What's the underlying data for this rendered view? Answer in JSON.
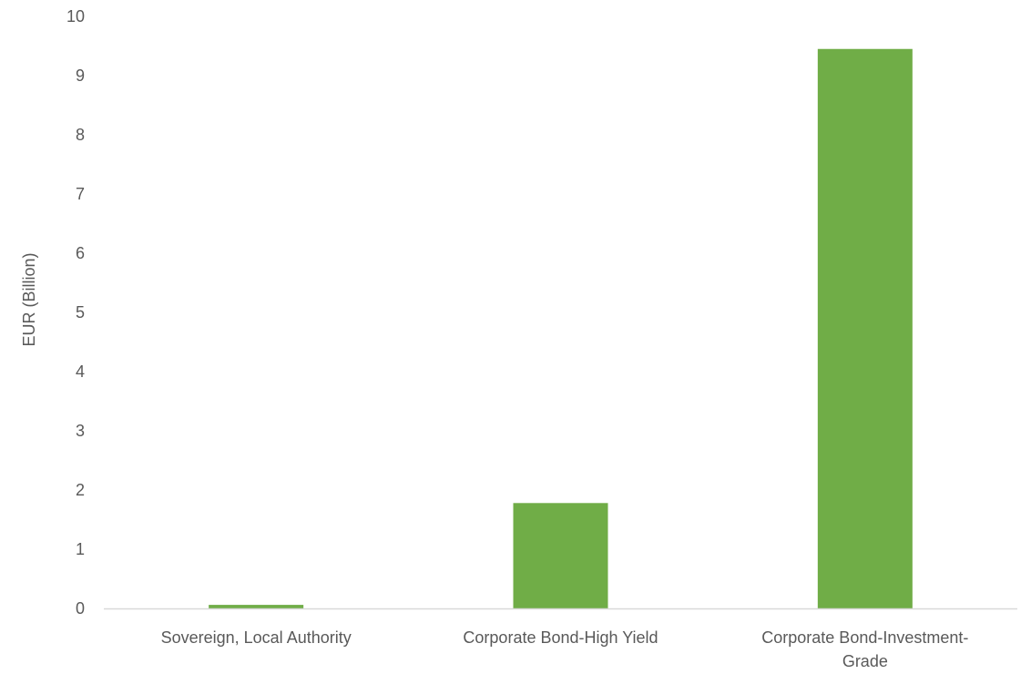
{
  "chart_data": {
    "type": "bar",
    "title": "",
    "xlabel": "",
    "ylabel": "EUR (Billion)",
    "categories": [
      [
        "Sovereign, Local Authority"
      ],
      [
        "Corporate Bond-High Yield"
      ],
      [
        "Corporate Bond-Investment-",
        "Grade"
      ]
    ],
    "values": [
      0.06,
      1.78,
      9.45
    ],
    "ylim": [
      0,
      10
    ],
    "yticks": [
      0,
      1,
      2,
      3,
      4,
      5,
      6,
      7,
      8,
      9,
      10
    ],
    "bar_color": "#70ad47",
    "axis_color": "#d9d9d9",
    "text_color": "#595959",
    "grid": false,
    "legend": "none"
  }
}
